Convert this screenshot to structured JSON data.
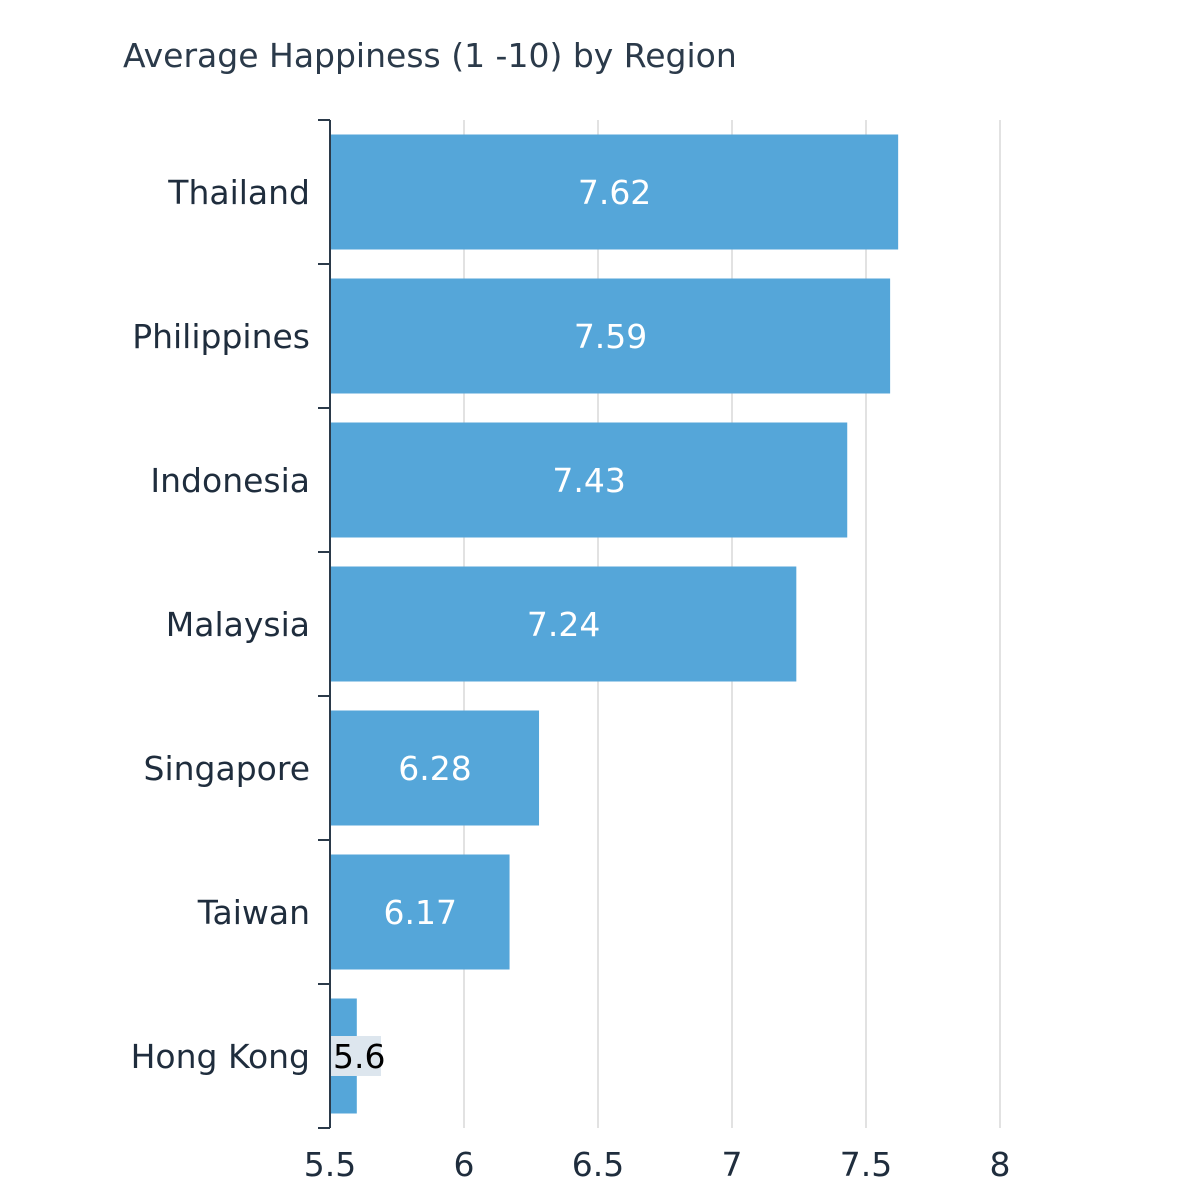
{
  "chart_data": {
    "type": "bar",
    "orientation": "horizontal",
    "title": "Average Happiness (1 -10) by Region",
    "categories": [
      "Thailand",
      "Philippines",
      "Indonesia",
      "Malaysia",
      "Singapore",
      "Taiwan",
      "Hong Kong"
    ],
    "values": [
      7.62,
      7.59,
      7.43,
      7.24,
      6.28,
      6.17,
      5.6
    ],
    "value_labels": [
      "7.62",
      "7.59",
      "7.43",
      "7.24",
      "6.28",
      "6.17",
      "5.6"
    ],
    "xlim": [
      5.5,
      8
    ],
    "xticks": [
      5.5,
      6,
      6.5,
      7,
      7.5,
      8
    ],
    "xtick_labels": [
      "5.5",
      "6",
      "6.5",
      "7",
      "7.5",
      "8"
    ],
    "xlabel": "",
    "ylabel": "",
    "grid": true,
    "bar_color": "#55a6d9",
    "grid_color": "#e2e2e2",
    "axis_color": "#2b3a4a"
  }
}
